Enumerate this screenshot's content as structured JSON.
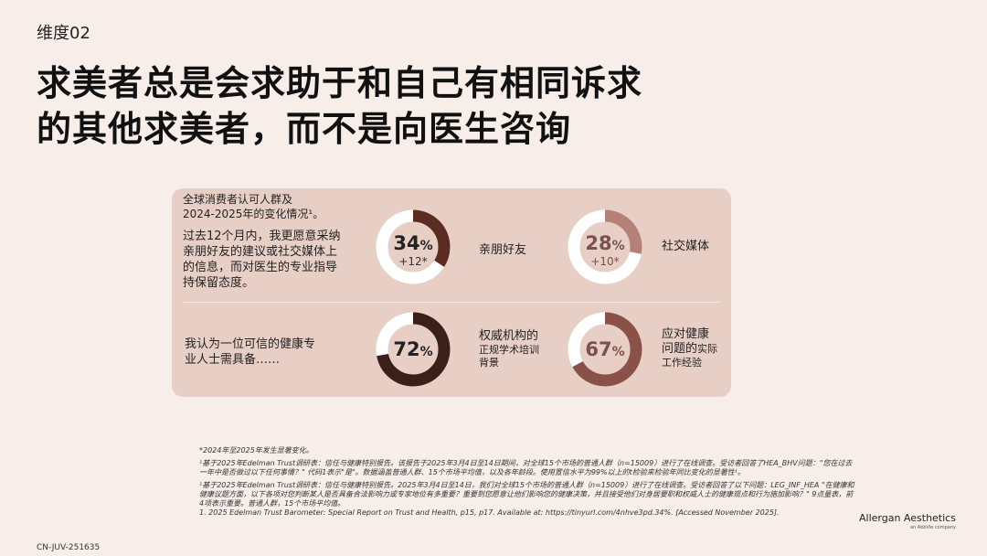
{
  "section_label": "维度02",
  "title": {
    "line1": "求美者总是会求助于和自己有相同诉求",
    "line2": "的其他求美者，而不是向医生咨询"
  },
  "panel": {
    "header_line1": "全球消费者认可人群及",
    "header_line2": "2024-2025年的变化情况¹。",
    "row1": {
      "text_lines": [
        "过去12个月内，我更愿意采纳",
        "亲朋好友的建议或社交媒体上",
        "的信息，而对医生的专业指导",
        "持保留态度。"
      ],
      "items": [
        {
          "value": "34",
          "pct": "%",
          "delta": "+12*",
          "label_lines": [
            "亲朋好友"
          ],
          "fraction": 0.34,
          "color": "#5a2c22",
          "light": false
        },
        {
          "value": "28",
          "pct": "%",
          "delta": "+10*",
          "label_lines": [
            "社交媒体"
          ],
          "fraction": 0.28,
          "color": "#b58077",
          "light": true
        }
      ]
    },
    "row2": {
      "text_lines": [
        "我认为一位可信的健康专",
        "业人士需具备……"
      ],
      "items": [
        {
          "value": "72",
          "pct": "%",
          "delta": "",
          "label_main": "权威机构的",
          "label_sub": [
            "正规学术培训",
            "背景"
          ],
          "fraction": 0.72,
          "color": "#3d1f1a",
          "light": false
        },
        {
          "value": "67",
          "pct": "%",
          "delta": "",
          "label_main": "应对健康",
          "label_main2": "问题的",
          "label_sub_inline": "实际",
          "label_sub": [
            "工作经验"
          ],
          "fraction": 0.67,
          "color": "#8a5148",
          "light": true
        }
      ]
    }
  },
  "footnotes": {
    "star": "*2024年至2025年发生显著变化。",
    "note1": "¹基于2025年Edelman Trust调研表：信任与健康特别报告。该报告于2025年3月4日至14日期间，对全球15个市场的普通人群（n=15009）进行了在线调查。受访者回答了HEA_BHV问题：\"您在过去一年中是否做过以下任何事情？\" 代码1表示\"是\"。数据涵盖普通人群、15个市场平均值，以及各年龄段。使用置信水平为99%以上的t检验来检验年同比变化的显著性¹。",
    "note2": "¹基于2025年Edelman Trust调研表：信任与健康特别报告。2025年3月4日至14日，我们对全球15个市场的普通人群（n=15009）进行了在线调查。受访者回答了以下问题：LEG_INF_HEA \"在健康和健康议题方面，以下各项对您判断某人是否具备合法影响力或专家地位有多重要？重要到您愿意让他们影响您的健康决策，并且接受他们对身居要职和权威人士的健康观点和行为施加影响？\" 9点量表，前4项表示重要。普通人群，15个市场平均值。",
    "ref": "1. 2025 Edelman Trust Barometer: Special Report on Trust and Health, p15, p17. Available at: https://tinyurl.com/4nhve3pd.34%. [Accessed November 2025]."
  },
  "code": "CN-JUV-251635",
  "brand": {
    "name": "Allergan Aesthetics",
    "sub": "an AbbVie company"
  }
}
